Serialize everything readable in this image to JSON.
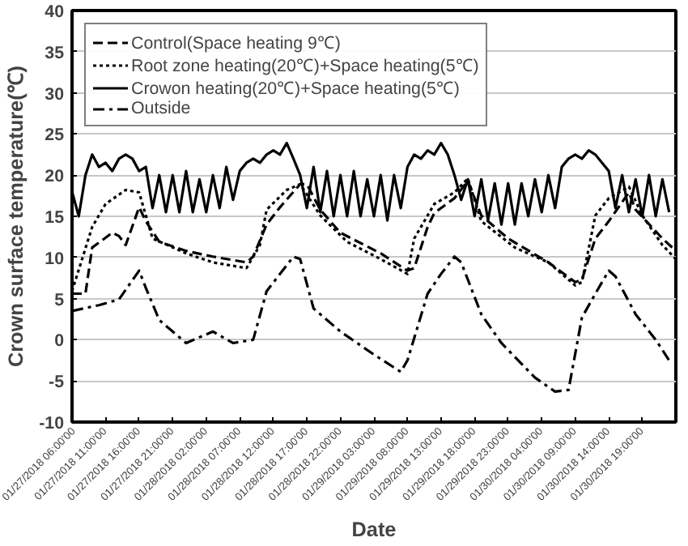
{
  "chart_data": {
    "type": "line",
    "xlabel": "Date",
    "ylabel": "Crown surface temperature(℃)",
    "xlim": [
      "2018-01-27T06:00",
      "2018-01-31T00:00"
    ],
    "xticks": [
      {
        "value": "2018-01-27T06:00",
        "label": "01/27/2018 06:00'00"
      },
      {
        "value": "2018-01-27T11:00",
        "label": "01/27/2018 11:00'00"
      },
      {
        "value": "2018-01-27T16:00",
        "label": "01/27/2018 16:00'00"
      },
      {
        "value": "2018-01-27T21:00",
        "label": "01/27/2018 21:00'00"
      },
      {
        "value": "2018-01-28T02:00",
        "label": "01/28/2018 02:00'00"
      },
      {
        "value": "2018-01-28T07:00",
        "label": "01/28/2018 07:00'00"
      },
      {
        "value": "2018-01-28T12:00",
        "label": "01/28/2018 12:00'00"
      },
      {
        "value": "2018-01-28T17:00",
        "label": "01/28/2018 17:00'00"
      },
      {
        "value": "2018-01-28T22:00",
        "label": "01/28/2018 22:00'00"
      },
      {
        "value": "2018-01-29T03:00",
        "label": "01/29/2018 03:00'00"
      },
      {
        "value": "2018-01-29T08:00",
        "label": "01/29/2018 08:00'00"
      },
      {
        "value": "2018-01-29T13:00",
        "label": "01/29/2018 13:00'00"
      },
      {
        "value": "2018-01-29T18:00",
        "label": "01/29/2018 18:00'00"
      },
      {
        "value": "2018-01-29T23:00",
        "label": "01/29/2018 23:00'00"
      },
      {
        "value": "2018-01-30T04:00",
        "label": "01/30/2018 04:00'00"
      },
      {
        "value": "2018-01-30T09:00",
        "label": "01/30/2018 09:00'00"
      },
      {
        "value": "2018-01-30T14:00",
        "label": "01/30/2018 14:00'00"
      },
      {
        "value": "2018-01-30T19:00",
        "label": "01/30/2018 19:00'00"
      }
    ],
    "ylim": [
      -10,
      40
    ],
    "yticks": [
      -10,
      -5,
      0,
      5,
      10,
      15,
      20,
      25,
      30,
      35,
      40
    ],
    "grid": "y",
    "legend": "top left",
    "marker": "none",
    "series": [
      {
        "name": "Control(Space heating 9℃)",
        "color": "#000000",
        "line_style": "dashed",
        "x": [
          "2018-01-27T06:00",
          "2018-01-27T08:00",
          "2018-01-27T09:00",
          "2018-01-27T12:00",
          "2018-01-27T13:00",
          "2018-01-27T14:00",
          "2018-01-27T16:00",
          "2018-01-27T17:00",
          "2018-01-27T19:00",
          "2018-01-27T23:00",
          "2018-01-28T03:00",
          "2018-01-28T08:00",
          "2018-01-28T09:00",
          "2018-01-28T11:00",
          "2018-01-28T13:00",
          "2018-01-28T16:00",
          "2018-01-28T17:00",
          "2018-01-28T19:00",
          "2018-01-28T22:00",
          "2018-01-29T04:00",
          "2018-01-29T08:00",
          "2018-01-29T09:00",
          "2018-01-29T11:00",
          "2018-01-29T12:00",
          "2018-01-29T15:00",
          "2018-01-29T17:00",
          "2018-01-29T19:00",
          "2018-01-29T23:00",
          "2018-01-30T05:00",
          "2018-01-30T09:00",
          "2018-01-30T10:00",
          "2018-01-30T12:00",
          "2018-01-30T14:00",
          "2018-01-30T17:00",
          "2018-01-30T18:00",
          "2018-01-30T22:00",
          "2018-01-31T00:00"
        ],
        "values": [
          5.6,
          5.6,
          11.2,
          13,
          12.6,
          11.5,
          16.1,
          14.4,
          11.9,
          10.8,
          10.1,
          9.4,
          10.1,
          14,
          16.1,
          18.9,
          18.9,
          15.8,
          13,
          10.5,
          8.4,
          8.7,
          13.7,
          15.4,
          17.2,
          19.3,
          15.1,
          12.3,
          9.4,
          7,
          7.3,
          12.3,
          14.4,
          17.9,
          15.8,
          12.3,
          10.8
        ]
      },
      {
        "name": "Root zone heating(20℃)+Space heating(5℃)",
        "color": "#000000",
        "line_style": "dotted",
        "x": [
          "2018-01-27T06:00",
          "2018-01-27T09:00",
          "2018-01-27T11:00",
          "2018-01-27T14:00",
          "2018-01-27T16:00",
          "2018-01-27T18:00",
          "2018-01-27T23:00",
          "2018-01-28T03:00",
          "2018-01-28T08:00",
          "2018-01-28T10:00",
          "2018-01-28T11:00",
          "2018-01-28T14:00",
          "2018-01-28T16:00",
          "2018-01-28T19:00",
          "2018-01-28T23:00",
          "2018-01-29T04:00",
          "2018-01-29T08:00",
          "2018-01-29T09:00",
          "2018-01-29T12:00",
          "2018-01-29T15:00",
          "2018-01-29T17:00",
          "2018-01-29T19:00",
          "2018-01-30T00:00",
          "2018-01-30T05:00",
          "2018-01-30T09:00",
          "2018-01-30T10:00",
          "2018-01-30T12:00",
          "2018-01-30T14:00",
          "2018-01-30T17:00",
          "2018-01-30T19:00",
          "2018-01-30T22:00",
          "2018-01-31T00:00"
        ],
        "values": [
          5.9,
          13.7,
          16.5,
          18.2,
          17.9,
          12.3,
          10.5,
          9.4,
          8.7,
          11.5,
          15.8,
          18.2,
          18.9,
          15.1,
          11.9,
          9.8,
          8,
          12.3,
          16.5,
          17.9,
          19.6,
          14.4,
          11.2,
          9.4,
          6.6,
          7,
          15.1,
          17.2,
          18.6,
          15.1,
          11.5,
          9.8
        ]
      },
      {
        "name": "Crowon heating(20℃)+Space heating(5℃)",
        "color": "#000000",
        "line_style": "solid",
        "x": [
          "2018-01-27T06:00",
          "2018-01-27T07:00",
          "2018-01-27T08:00",
          "2018-01-27T09:00",
          "2018-01-27T10:00",
          "2018-01-27T11:00",
          "2018-01-27T12:00",
          "2018-01-27T13:00",
          "2018-01-27T14:00",
          "2018-01-27T15:00",
          "2018-01-27T16:00",
          "2018-01-27T17:00",
          "2018-01-27T18:00",
          "2018-01-27T19:00",
          "2018-01-27T20:00",
          "2018-01-27T21:00",
          "2018-01-27T22:00",
          "2018-01-27T23:00",
          "2018-01-28T00:00",
          "2018-01-28T01:00",
          "2018-01-28T02:00",
          "2018-01-28T03:00",
          "2018-01-28T04:00",
          "2018-01-28T05:00",
          "2018-01-28T06:00",
          "2018-01-28T07:00",
          "2018-01-28T08:00",
          "2018-01-28T09:00",
          "2018-01-28T10:00",
          "2018-01-28T11:00",
          "2018-01-28T12:00",
          "2018-01-28T13:00",
          "2018-01-28T14:00",
          "2018-01-28T15:00",
          "2018-01-28T16:00",
          "2018-01-28T17:00",
          "2018-01-28T18:00",
          "2018-01-28T19:00",
          "2018-01-28T20:00",
          "2018-01-28T21:00",
          "2018-01-28T22:00",
          "2018-01-28T23:00",
          "2018-01-29T00:00",
          "2018-01-29T01:00",
          "2018-01-29T02:00",
          "2018-01-29T03:00",
          "2018-01-29T04:00",
          "2018-01-29T05:00",
          "2018-01-29T06:00",
          "2018-01-29T07:00",
          "2018-01-29T08:00",
          "2018-01-29T09:00",
          "2018-01-29T10:00",
          "2018-01-29T11:00",
          "2018-01-29T12:00",
          "2018-01-29T13:00",
          "2018-01-29T14:00",
          "2018-01-29T15:00",
          "2018-01-29T16:00",
          "2018-01-29T17:00",
          "2018-01-29T18:00",
          "2018-01-29T19:00",
          "2018-01-29T20:00",
          "2018-01-29T21:00",
          "2018-01-29T22:00",
          "2018-01-29T23:00",
          "2018-01-30T00:00",
          "2018-01-30T01:00",
          "2018-01-30T02:00",
          "2018-01-30T03:00",
          "2018-01-30T04:00",
          "2018-01-30T05:00",
          "2018-01-30T06:00",
          "2018-01-30T07:00",
          "2018-01-30T08:00",
          "2018-01-30T09:00",
          "2018-01-30T10:00",
          "2018-01-30T11:00",
          "2018-01-30T12:00",
          "2018-01-30T13:00",
          "2018-01-30T14:00",
          "2018-01-30T15:00",
          "2018-01-30T16:00",
          "2018-01-30T17:00",
          "2018-01-30T18:00",
          "2018-01-30T19:00",
          "2018-01-30T20:00",
          "2018-01-30T21:00",
          "2018-01-30T22:00",
          "2018-01-30T23:00"
        ],
        "values": [
          18,
          15,
          20,
          22.5,
          21,
          21.5,
          20.5,
          22,
          22.5,
          22,
          20.5,
          21,
          16,
          20,
          15.5,
          20,
          15.5,
          20.5,
          15.5,
          19.5,
          15.5,
          20,
          16,
          21,
          17,
          20.5,
          21.5,
          22,
          21.5,
          22.5,
          23,
          22.5,
          23.9,
          22,
          20,
          16,
          21,
          15.5,
          20.5,
          15,
          20,
          15,
          20.5,
          15,
          19.5,
          15,
          20,
          14.5,
          20,
          16,
          21,
          22.5,
          22,
          23,
          22.5,
          23.9,
          22.5,
          20,
          17,
          19.5,
          15,
          19.5,
          14.5,
          19,
          14,
          19,
          14,
          19,
          15,
          19.5,
          15.5,
          20,
          16,
          21,
          22,
          22.5,
          22,
          23,
          22.5,
          21.5,
          20.5,
          16,
          20,
          15.5,
          19.5,
          15,
          20,
          15,
          19.5,
          15.5
        ]
      },
      {
        "name": "Outside",
        "color": "#000000",
        "line_style": "dashdot",
        "x": [
          "2018-01-27T06:00",
          "2018-01-27T10:00",
          "2018-01-27T13:00",
          "2018-01-27T16:00",
          "2018-01-27T17:00",
          "2018-01-27T19:00",
          "2018-01-27T23:00",
          "2018-01-28T03:00",
          "2018-01-28T06:00",
          "2018-01-28T09:00",
          "2018-01-28T11:00",
          "2018-01-28T15:00",
          "2018-01-28T16:00",
          "2018-01-28T18:00",
          "2018-01-28T22:00",
          "2018-01-29T03:00",
          "2018-01-29T07:00",
          "2018-01-29T08:00",
          "2018-01-29T11:00",
          "2018-01-29T13:00",
          "2018-01-29T15:00",
          "2018-01-29T16:00",
          "2018-01-29T19:00",
          "2018-01-29T22:00",
          "2018-01-30T03:00",
          "2018-01-30T06:00",
          "2018-01-30T08:00",
          "2018-01-30T10:00",
          "2018-01-30T12:00",
          "2018-01-30T14:00",
          "2018-01-30T15:00",
          "2018-01-30T18:00",
          "2018-01-30T21:00",
          "2018-01-30T23:00"
        ],
        "values": [
          3.5,
          4.2,
          4.9,
          8.4,
          6.3,
          2.4,
          -0.4,
          1.0,
          -0.4,
          0,
          5.9,
          10.1,
          9.8,
          3.8,
          1.0,
          -1.8,
          -3.9,
          -2.5,
          5.6,
          8.0,
          10.1,
          9.4,
          3.1,
          -0.4,
          -4.6,
          -6.3,
          -6.1,
          2.7,
          5.6,
          8.4,
          7.7,
          3.1,
          0,
          -2.5
        ]
      }
    ]
  }
}
